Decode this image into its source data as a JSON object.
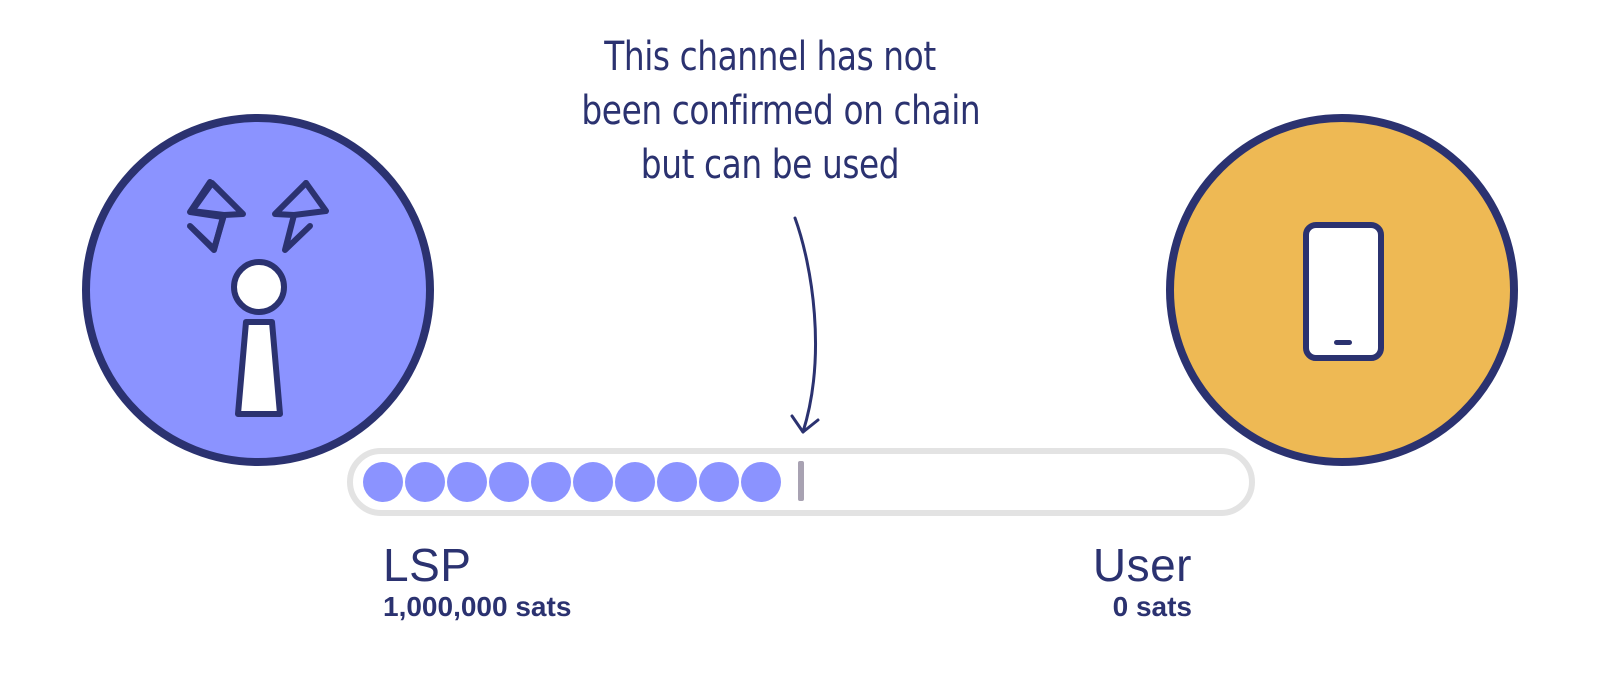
{
  "callout": {
    "lines": [
      "This channel has not",
      "been confirmed on chain",
      "but can be used"
    ]
  },
  "lsp": {
    "name": "LSP",
    "balance": "1,000,000 sats",
    "icon": "lsp-tower-icon",
    "color": "#8b93ff"
  },
  "user": {
    "name": "User",
    "balance": "0 sats",
    "icon": "phone-icon",
    "color": "#eeb954"
  },
  "channel": {
    "lsp_units": 10,
    "total_units": 21,
    "unit_color": "#8b93ff",
    "track_color": "#e3e3e3",
    "divider_color": "#a8a2b2"
  },
  "colors": {
    "ink": "#2b3270"
  }
}
